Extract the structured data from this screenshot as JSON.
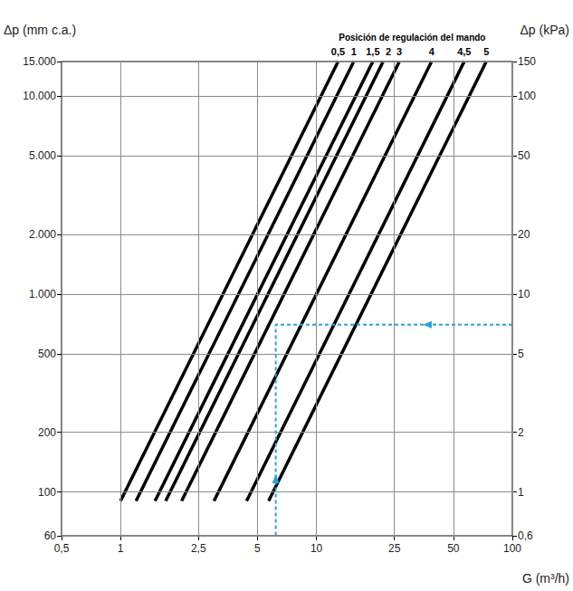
{
  "chart_data": {
    "type": "line",
    "title": "Posición de regulación del mando",
    "xlabel": "G (m³/h)",
    "ylabel": "Δp (mm c.a.)",
    "y2label": "Δp (kPa)",
    "log": true,
    "grid": true,
    "xlim": [
      0.5,
      100
    ],
    "xticks": [
      {
        "value": 0.5,
        "label": "0,5"
      },
      1,
      {
        "value": 2.5,
        "label": "2,5"
      },
      5,
      10,
      25,
      50,
      100
    ],
    "ylim": [
      60,
      15000
    ],
    "yticks": [
      60,
      100,
      200,
      500,
      {
        "value": 1000,
        "label": "1.000"
      },
      {
        "value": 2000,
        "label": "2.000"
      },
      {
        "value": 5000,
        "label": "5.000"
      },
      {
        "value": 10000,
        "label": "10.000"
      },
      {
        "value": 15000,
        "label": "15.000"
      }
    ],
    "y2lim": [
      0.6,
      150
    ],
    "y2ticks": [
      {
        "value": 0.6,
        "label": "0,6"
      },
      1,
      2,
      5,
      10,
      20,
      50,
      100,
      150
    ],
    "series": [
      {
        "name": "0,5",
        "color": "#000000",
        "x": [
          1.0,
          12.9
        ],
        "values": [
          90,
          15000
        ]
      },
      {
        "name": "1",
        "color": "#000000",
        "x": [
          1.2,
          15.5
        ],
        "values": [
          90,
          15000
        ]
      },
      {
        "name": "1,5",
        "color": "#000000",
        "x": [
          1.5,
          19.4
        ],
        "values": [
          90,
          15000
        ]
      },
      {
        "name": "2",
        "color": "#000000",
        "x": [
          1.7,
          21.9
        ],
        "values": [
          90,
          15000
        ]
      },
      {
        "name": "3",
        "color": "#000000",
        "x": [
          2.05,
          26.5
        ],
        "values": [
          90,
          15000
        ]
      },
      {
        "name": "4",
        "color": "#000000",
        "x": [
          3.0,
          38.7
        ],
        "values": [
          90,
          15000
        ]
      },
      {
        "name": "4,5",
        "color": "#000000",
        "x": [
          4.4,
          56.8
        ],
        "values": [
          90,
          15000
        ]
      },
      {
        "name": "5",
        "color": "#000000",
        "x": [
          5.7,
          73.6
        ],
        "values": [
          90,
          15000
        ]
      }
    ],
    "example": {
      "x": [
        100,
        6.2,
        6.2
      ],
      "values": [
        700,
        700,
        60
      ],
      "color": "#29a3dc",
      "line_style": "dashed",
      "marker": "arrow"
    }
  }
}
